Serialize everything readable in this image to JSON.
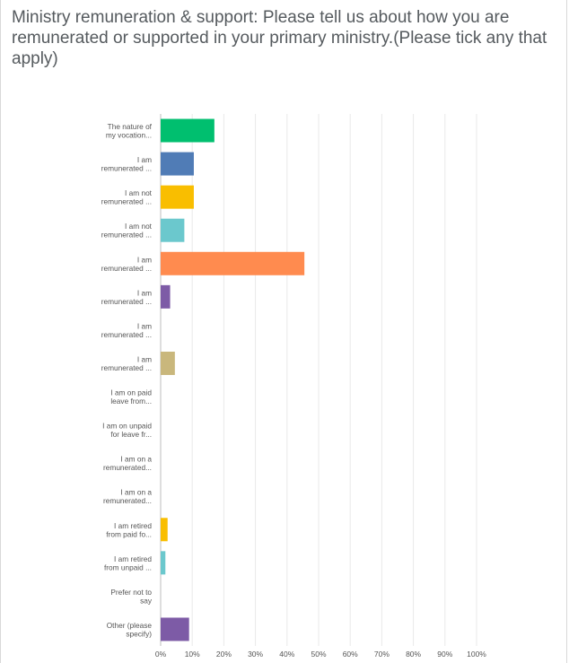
{
  "question": {
    "title": "Ministry remuneration & support: Please tell us about how you are remunerated or supported in your primary ministry.(Please tick any that apply)"
  },
  "chart_data": {
    "type": "bar",
    "orientation": "horizontal",
    "categories": [
      "The nature of my vocation...",
      "I am remunerated ...",
      "I am not remunerated ...",
      "I am not remunerated ...",
      "I am remunerated ...",
      "I am remunerated ...",
      "I am remunerated ...",
      "I am remunerated ...",
      "I am on paid leave from...",
      "I am on unpaid for leave fr...",
      "I am on a remunerated...",
      "I am on a remunerated...",
      "I am retired from paid fo...",
      "I am retired from unpaid ...",
      "Prefer not to say",
      "Other (please specify)"
    ],
    "category_lines": [
      [
        "The nature of",
        "my vocation..."
      ],
      [
        "I am",
        "remunerated ..."
      ],
      [
        "I am not",
        "remunerated ..."
      ],
      [
        "I am not",
        "remunerated ..."
      ],
      [
        "I am",
        "remunerated ..."
      ],
      [
        "I am",
        "remunerated ..."
      ],
      [
        "I am",
        "remunerated ..."
      ],
      [
        "I am",
        "remunerated ..."
      ],
      [
        "I am on paid",
        "leave from..."
      ],
      [
        "I am on unpaid",
        "for leave fr..."
      ],
      [
        "I am on a",
        "remunerated..."
      ],
      [
        "I am on a",
        "remunerated..."
      ],
      [
        "I am retired",
        "from paid fo..."
      ],
      [
        "I am retired",
        "from unpaid ..."
      ],
      [
        "Prefer not to",
        "say"
      ],
      [
        "Other (please",
        "specify)"
      ]
    ],
    "values": [
      17,
      10.5,
      10.5,
      7.5,
      45.5,
      3,
      0,
      4.5,
      0,
      0,
      0,
      0,
      2.2,
      1.5,
      0,
      9
    ],
    "colors": [
      "#00bf6f",
      "#507cb6",
      "#f9be00",
      "#6bc8cd",
      "#ff8b4f",
      "#7d5ba6",
      "#dd5d8c",
      "#c9b77c",
      "#507cb6",
      "#00bf6f",
      "#f9be00",
      "#ff8b4f",
      "#f9be00",
      "#6bc8cd",
      "#dd5d8c",
      "#7d5ba6"
    ],
    "xlim": [
      0,
      100
    ],
    "xticks": [
      0,
      10,
      20,
      30,
      40,
      50,
      60,
      70,
      80,
      90,
      100
    ],
    "xtick_labels": [
      "0%",
      "10%",
      "20%",
      "30%",
      "40%",
      "50%",
      "60%",
      "70%",
      "80%",
      "90%",
      "100%"
    ],
    "grid": true,
    "legend": "none"
  }
}
